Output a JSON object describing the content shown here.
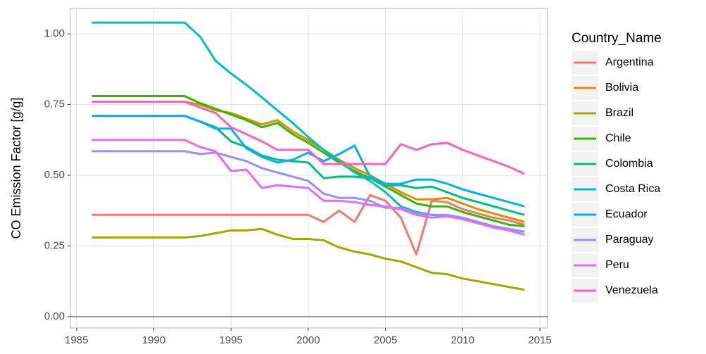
{
  "chart_data": {
    "type": "line",
    "y_label": "CO Emission Factor [g/g]",
    "legend_title": "Country_Name",
    "legend_position": "right",
    "grid": true,
    "hline": 0,
    "xlim": [
      1984.6,
      2015.5
    ],
    "ylim": [
      -0.04,
      1.09
    ],
    "xticks": [
      1985,
      1990,
      1995,
      2000,
      2005,
      2010,
      2015
    ],
    "yticks": [
      {
        "value": 0,
        "label": "0.00"
      },
      {
        "value": 0.25,
        "label": "0.25"
      },
      {
        "value": 0.5,
        "label": "0.50"
      },
      {
        "value": 0.75,
        "label": "0.75"
      },
      {
        "value": 1,
        "label": "1.00"
      }
    ],
    "x": [
      1986,
      1987,
      1988,
      1989,
      1990,
      1991,
      1992,
      1993,
      1994,
      1995,
      1996,
      1997,
      1998,
      1999,
      2000,
      2001,
      2002,
      2003,
      2004,
      2005,
      2006,
      2007,
      2008,
      2009,
      2010,
      2011,
      2012,
      2013,
      2014
    ],
    "series": [
      {
        "name": "Argentina",
        "color": "#F8766D",
        "values": [
          0.36,
          0.36,
          0.36,
          0.36,
          0.36,
          0.36,
          0.36,
          0.36,
          0.36,
          0.36,
          0.36,
          0.36,
          0.36,
          0.36,
          0.36,
          0.335,
          0.375,
          0.335,
          0.43,
          0.41,
          0.35,
          0.22,
          0.41,
          0.405,
          0.38,
          0.365,
          0.35,
          0.34,
          0.325
        ]
      },
      {
        "name": "Bolivia",
        "color": "#D89000",
        "values": [
          0.76,
          0.76,
          0.76,
          0.76,
          0.76,
          0.76,
          0.76,
          0.75,
          0.73,
          0.72,
          0.7,
          0.68,
          0.695,
          0.655,
          0.625,
          0.59,
          0.555,
          0.525,
          0.5,
          0.47,
          0.44,
          0.415,
          0.415,
          0.42,
          0.4,
          0.38,
          0.365,
          0.35,
          0.335
        ]
      },
      {
        "name": "Brazil",
        "color": "#A3A500",
        "values": [
          0.28,
          0.28,
          0.28,
          0.28,
          0.28,
          0.28,
          0.28,
          0.285,
          0.295,
          0.305,
          0.305,
          0.31,
          0.29,
          0.275,
          0.275,
          0.27,
          0.245,
          0.23,
          0.22,
          0.205,
          0.195,
          0.175,
          0.155,
          0.15,
          0.135,
          0.125,
          0.115,
          0.105,
          0.095
        ]
      },
      {
        "name": "Chile",
        "color": "#39B600",
        "values": [
          0.78,
          0.78,
          0.78,
          0.78,
          0.78,
          0.78,
          0.78,
          0.755,
          0.735,
          0.715,
          0.695,
          0.67,
          0.685,
          0.645,
          0.615,
          0.58,
          0.545,
          0.515,
          0.49,
          0.46,
          0.43,
          0.4,
          0.39,
          0.39,
          0.37,
          0.355,
          0.34,
          0.325,
          0.32
        ]
      },
      {
        "name": "Colombia",
        "color": "#00BF7D",
        "values": [
          0.71,
          0.71,
          0.71,
          0.71,
          0.71,
          0.71,
          0.71,
          0.69,
          0.67,
          0.62,
          0.6,
          0.57,
          0.555,
          0.55,
          0.545,
          0.49,
          0.495,
          0.495,
          0.49,
          0.465,
          0.465,
          0.455,
          0.46,
          0.44,
          0.42,
          0.405,
          0.39,
          0.375,
          0.36
        ]
      },
      {
        "name": "Costa Rica",
        "color": "#00BFC4",
        "values": [
          1.04,
          1.04,
          1.04,
          1.04,
          1.04,
          1.04,
          1.04,
          0.99,
          0.905,
          0.86,
          0.82,
          0.775,
          0.73,
          0.685,
          0.635,
          0.59,
          0.55,
          0.51,
          0.48,
          0.44,
          0.39,
          0.37,
          0.36,
          0.355,
          0.345,
          0.33,
          0.32,
          0.31,
          0.3
        ]
      },
      {
        "name": "Ecuador",
        "color": "#00B0F6",
        "values": [
          0.71,
          0.71,
          0.71,
          0.71,
          0.71,
          0.71,
          0.71,
          0.69,
          0.665,
          0.665,
          0.595,
          0.565,
          0.545,
          0.555,
          0.58,
          0.55,
          0.575,
          0.605,
          0.495,
          0.47,
          0.47,
          0.485,
          0.485,
          0.47,
          0.45,
          0.435,
          0.42,
          0.405,
          0.39
        ]
      },
      {
        "name": "Paraguay",
        "color": "#9590FF",
        "values": [
          0.585,
          0.585,
          0.585,
          0.585,
          0.585,
          0.585,
          0.585,
          0.575,
          0.58,
          0.565,
          0.55,
          0.525,
          0.51,
          0.495,
          0.48,
          0.435,
          0.42,
          0.42,
          0.41,
          0.385,
          0.385,
          0.365,
          0.36,
          0.36,
          0.35,
          0.335,
          0.32,
          0.31,
          0.3
        ]
      },
      {
        "name": "Peru",
        "color": "#E76BF3",
        "values": [
          0.625,
          0.625,
          0.625,
          0.625,
          0.625,
          0.625,
          0.625,
          0.6,
          0.585,
          0.515,
          0.52,
          0.455,
          0.465,
          0.46,
          0.455,
          0.41,
          0.41,
          0.405,
          0.395,
          0.39,
          0.38,
          0.36,
          0.35,
          0.355,
          0.345,
          0.33,
          0.315,
          0.305,
          0.29
        ]
      },
      {
        "name": "Venezuela",
        "color": "#FF62BC",
        "values": [
          0.76,
          0.76,
          0.76,
          0.76,
          0.76,
          0.76,
          0.76,
          0.74,
          0.72,
          0.67,
          0.645,
          0.62,
          0.59,
          0.59,
          0.59,
          0.54,
          0.54,
          0.54,
          0.54,
          0.54,
          0.61,
          0.59,
          0.61,
          0.615,
          0.59,
          0.57,
          0.55,
          0.53,
          0.505
        ]
      }
    ]
  }
}
